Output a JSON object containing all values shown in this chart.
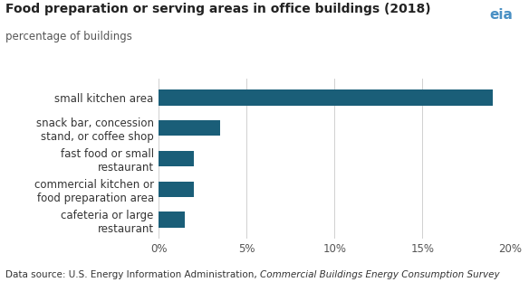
{
  "title": "Food preparation or serving areas in office buildings (2018)",
  "subtitle": "percentage of buildings",
  "categories": [
    "cafeteria or large\nrestaurant",
    "commercial kitchen or\nfood preparation area",
    "fast food or small\nrestaurant",
    "snack bar, concession\nstand, or coffee shop",
    "small kitchen area"
  ],
  "values": [
    1.5,
    2.0,
    2.0,
    3.5,
    19.0
  ],
  "bar_color": "#1a5e78",
  "background_color": "#ffffff",
  "xlim": [
    0,
    20
  ],
  "xticks": [
    0,
    5,
    10,
    15,
    20
  ],
  "xtick_labels": [
    "0%",
    "5%",
    "10%",
    "15%",
    "20%"
  ],
  "data_source_plain": "Data source: U.S. Energy Information Administration, ",
  "data_source_italic": "Commercial Buildings Energy Consumption Survey",
  "title_fontsize": 10,
  "subtitle_fontsize": 8.5,
  "tick_fontsize": 8.5,
  "label_fontsize": 8.5,
  "source_fontsize": 7.5,
  "grid_color": "#d0d0d0",
  "tick_color": "#555555",
  "label_color": "#333333",
  "title_color": "#222222",
  "source_color": "#333333"
}
